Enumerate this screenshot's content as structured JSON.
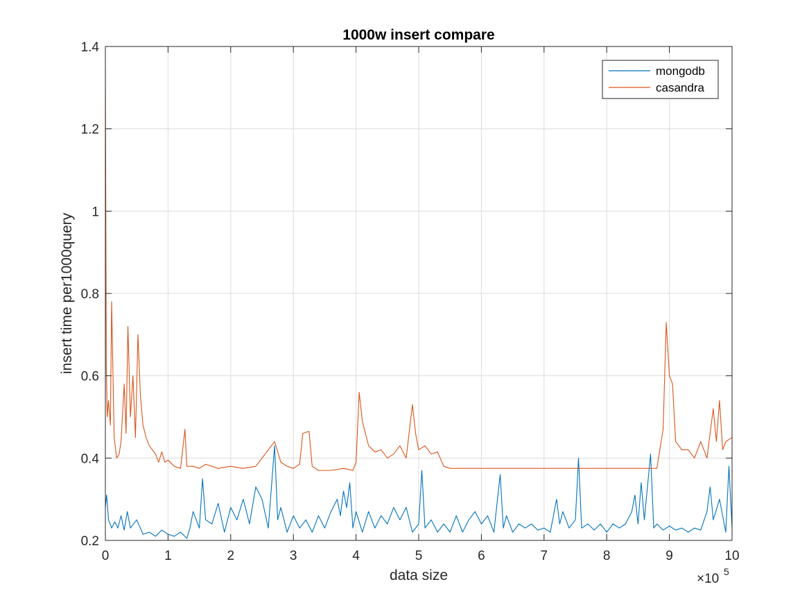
{
  "chart_data": {
    "type": "line",
    "title": "1000w insert compare",
    "xlabel": "data size",
    "ylabel": "insert time per1000query",
    "x_exponent_base": "×10",
    "x_exponent_power": "5",
    "x_scale_factor": 100000,
    "xlim": [
      0,
      1000000
    ],
    "ylim": [
      0.2,
      1.4
    ],
    "x_ticks": [
      0,
      100000,
      200000,
      300000,
      400000,
      500000,
      600000,
      700000,
      800000,
      900000,
      1000000
    ],
    "x_tick_labels": [
      "0",
      "1",
      "2",
      "3",
      "4",
      "5",
      "6",
      "7",
      "8",
      "9",
      "10"
    ],
    "y_ticks": [
      0.2,
      0.4,
      0.6,
      0.8,
      1.0,
      1.2,
      1.4
    ],
    "y_tick_labels": [
      "0.2",
      "0.4",
      "0.6",
      "0.8",
      "1",
      "1.2",
      "1.4"
    ],
    "grid": true,
    "box": true,
    "legend_position": "top-right",
    "series": [
      {
        "name": "mongodb",
        "color": "#0072BD",
        "points": [
          [
            0,
            0.28
          ],
          [
            2000,
            0.31
          ],
          [
            5000,
            0.25
          ],
          [
            10000,
            0.23
          ],
          [
            15000,
            0.245
          ],
          [
            20000,
            0.23
          ],
          [
            25000,
            0.26
          ],
          [
            30000,
            0.225
          ],
          [
            35000,
            0.27
          ],
          [
            40000,
            0.23
          ],
          [
            50000,
            0.25
          ],
          [
            60000,
            0.215
          ],
          [
            70000,
            0.22
          ],
          [
            80000,
            0.21
          ],
          [
            90000,
            0.225
          ],
          [
            100000,
            0.215
          ],
          [
            110000,
            0.21
          ],
          [
            120000,
            0.22
          ],
          [
            130000,
            0.205
          ],
          [
            135000,
            0.23
          ],
          [
            140000,
            0.27
          ],
          [
            150000,
            0.23
          ],
          [
            155000,
            0.35
          ],
          [
            160000,
            0.25
          ],
          [
            170000,
            0.24
          ],
          [
            180000,
            0.29
          ],
          [
            190000,
            0.22
          ],
          [
            200000,
            0.28
          ],
          [
            210000,
            0.25
          ],
          [
            220000,
            0.3
          ],
          [
            230000,
            0.24
          ],
          [
            240000,
            0.33
          ],
          [
            250000,
            0.3
          ],
          [
            260000,
            0.23
          ],
          [
            270000,
            0.43
          ],
          [
            275000,
            0.25
          ],
          [
            280000,
            0.28
          ],
          [
            290000,
            0.22
          ],
          [
            300000,
            0.26
          ],
          [
            310000,
            0.23
          ],
          [
            320000,
            0.25
          ],
          [
            330000,
            0.22
          ],
          [
            340000,
            0.26
          ],
          [
            350000,
            0.23
          ],
          [
            360000,
            0.27
          ],
          [
            370000,
            0.3
          ],
          [
            375000,
            0.26
          ],
          [
            380000,
            0.32
          ],
          [
            385000,
            0.28
          ],
          [
            390000,
            0.34
          ],
          [
            395000,
            0.23
          ],
          [
            400000,
            0.27
          ],
          [
            410000,
            0.22
          ],
          [
            420000,
            0.27
          ],
          [
            430000,
            0.23
          ],
          [
            440000,
            0.26
          ],
          [
            450000,
            0.24
          ],
          [
            460000,
            0.28
          ],
          [
            470000,
            0.25
          ],
          [
            480000,
            0.28
          ],
          [
            490000,
            0.22
          ],
          [
            500000,
            0.24
          ],
          [
            505000,
            0.37
          ],
          [
            510000,
            0.23
          ],
          [
            520000,
            0.25
          ],
          [
            530000,
            0.22
          ],
          [
            540000,
            0.24
          ],
          [
            550000,
            0.22
          ],
          [
            560000,
            0.26
          ],
          [
            570000,
            0.22
          ],
          [
            580000,
            0.25
          ],
          [
            590000,
            0.27
          ],
          [
            600000,
            0.24
          ],
          [
            610000,
            0.26
          ],
          [
            620000,
            0.22
          ],
          [
            630000,
            0.36
          ],
          [
            635000,
            0.23
          ],
          [
            640000,
            0.26
          ],
          [
            650000,
            0.22
          ],
          [
            660000,
            0.24
          ],
          [
            670000,
            0.23
          ],
          [
            680000,
            0.24
          ],
          [
            690000,
            0.225
          ],
          [
            700000,
            0.23
          ],
          [
            710000,
            0.22
          ],
          [
            720000,
            0.3
          ],
          [
            725000,
            0.24
          ],
          [
            730000,
            0.27
          ],
          [
            740000,
            0.23
          ],
          [
            750000,
            0.25
          ],
          [
            755000,
            0.4
          ],
          [
            760000,
            0.23
          ],
          [
            770000,
            0.24
          ],
          [
            780000,
            0.225
          ],
          [
            790000,
            0.24
          ],
          [
            800000,
            0.22
          ],
          [
            810000,
            0.24
          ],
          [
            820000,
            0.23
          ],
          [
            830000,
            0.24
          ],
          [
            840000,
            0.27
          ],
          [
            845000,
            0.31
          ],
          [
            850000,
            0.24
          ],
          [
            855000,
            0.34
          ],
          [
            860000,
            0.25
          ],
          [
            870000,
            0.41
          ],
          [
            875000,
            0.23
          ],
          [
            880000,
            0.24
          ],
          [
            890000,
            0.225
          ],
          [
            900000,
            0.235
          ],
          [
            910000,
            0.225
          ],
          [
            920000,
            0.23
          ],
          [
            930000,
            0.22
          ],
          [
            940000,
            0.23
          ],
          [
            950000,
            0.225
          ],
          [
            960000,
            0.27
          ],
          [
            965000,
            0.33
          ],
          [
            970000,
            0.25
          ],
          [
            980000,
            0.3
          ],
          [
            990000,
            0.22
          ],
          [
            995000,
            0.38
          ],
          [
            1000000,
            0.23
          ]
        ]
      },
      {
        "name": "casandra",
        "color": "#D95319",
        "points": [
          [
            0,
            1.35
          ],
          [
            1500,
            0.62
          ],
          [
            3000,
            0.5
          ],
          [
            5000,
            0.54
          ],
          [
            8000,
            0.48
          ],
          [
            10000,
            0.78
          ],
          [
            14000,
            0.45
          ],
          [
            18000,
            0.4
          ],
          [
            22000,
            0.41
          ],
          [
            25000,
            0.44
          ],
          [
            30000,
            0.58
          ],
          [
            33000,
            0.46
          ],
          [
            36000,
            0.72
          ],
          [
            40000,
            0.5
          ],
          [
            44000,
            0.6
          ],
          [
            48000,
            0.45
          ],
          [
            52000,
            0.7
          ],
          [
            56000,
            0.55
          ],
          [
            60000,
            0.48
          ],
          [
            65000,
            0.45
          ],
          [
            70000,
            0.43
          ],
          [
            75000,
            0.42
          ],
          [
            80000,
            0.41
          ],
          [
            85000,
            0.39
          ],
          [
            90000,
            0.415
          ],
          [
            95000,
            0.39
          ],
          [
            100000,
            0.395
          ],
          [
            110000,
            0.38
          ],
          [
            120000,
            0.375
          ],
          [
            127000,
            0.47
          ],
          [
            130000,
            0.38
          ],
          [
            140000,
            0.38
          ],
          [
            150000,
            0.375
          ],
          [
            160000,
            0.385
          ],
          [
            180000,
            0.375
          ],
          [
            200000,
            0.38
          ],
          [
            220000,
            0.375
          ],
          [
            240000,
            0.38
          ],
          [
            260000,
            0.42
          ],
          [
            270000,
            0.44
          ],
          [
            280000,
            0.39
          ],
          [
            290000,
            0.38
          ],
          [
            300000,
            0.375
          ],
          [
            310000,
            0.385
          ],
          [
            315000,
            0.46
          ],
          [
            325000,
            0.465
          ],
          [
            330000,
            0.38
          ],
          [
            340000,
            0.37
          ],
          [
            360000,
            0.37
          ],
          [
            380000,
            0.375
          ],
          [
            395000,
            0.37
          ],
          [
            400000,
            0.39
          ],
          [
            405000,
            0.56
          ],
          [
            410000,
            0.49
          ],
          [
            420000,
            0.43
          ],
          [
            430000,
            0.415
          ],
          [
            440000,
            0.42
          ],
          [
            450000,
            0.4
          ],
          [
            460000,
            0.41
          ],
          [
            470000,
            0.43
          ],
          [
            480000,
            0.4
          ],
          [
            490000,
            0.53
          ],
          [
            495000,
            0.46
          ],
          [
            500000,
            0.42
          ],
          [
            510000,
            0.43
          ],
          [
            520000,
            0.41
          ],
          [
            530000,
            0.415
          ],
          [
            540000,
            0.38
          ],
          [
            550000,
            0.375
          ],
          [
            600000,
            0.375
          ],
          [
            650000,
            0.375
          ],
          [
            700000,
            0.375
          ],
          [
            750000,
            0.375
          ],
          [
            800000,
            0.375
          ],
          [
            850000,
            0.375
          ],
          [
            880000,
            0.375
          ],
          [
            890000,
            0.47
          ],
          [
            895000,
            0.73
          ],
          [
            900000,
            0.6
          ],
          [
            905000,
            0.58
          ],
          [
            910000,
            0.44
          ],
          [
            920000,
            0.42
          ],
          [
            930000,
            0.42
          ],
          [
            940000,
            0.4
          ],
          [
            950000,
            0.44
          ],
          [
            960000,
            0.4
          ],
          [
            970000,
            0.52
          ],
          [
            975000,
            0.44
          ],
          [
            980000,
            0.54
          ],
          [
            985000,
            0.42
          ],
          [
            990000,
            0.44
          ],
          [
            1000000,
            0.45
          ]
        ]
      }
    ]
  }
}
